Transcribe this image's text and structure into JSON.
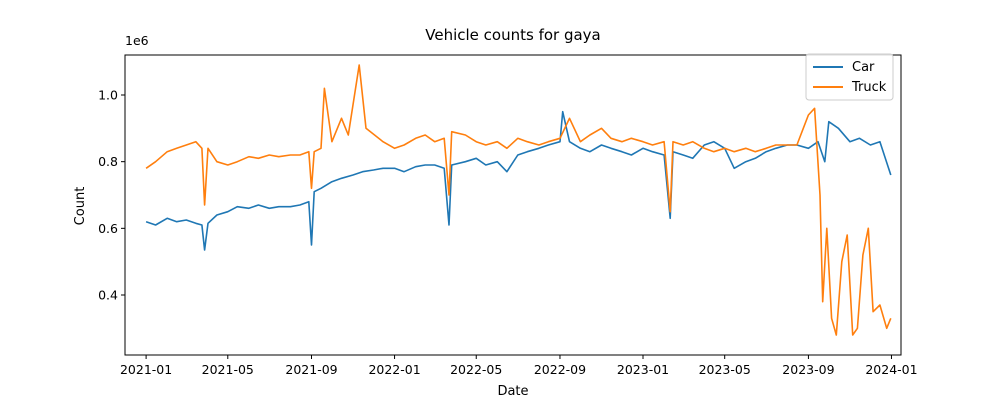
{
  "chart_data": {
    "type": "line",
    "title": "Vehicle counts for gaya",
    "xlabel": "Date",
    "ylabel": "Count",
    "y_scale_note": "1e6",
    "xlim": [
      "2020-12-01",
      "2024-01-15"
    ],
    "ylim": [
      0.22,
      1.12
    ],
    "x_ticks": [
      "2021-01",
      "2021-05",
      "2021-09",
      "2022-01",
      "2022-05",
      "2022-09",
      "2023-01",
      "2023-05",
      "2023-09",
      "2024-01"
    ],
    "y_ticks": [
      "0.4",
      "0.6",
      "0.8",
      "1.0"
    ],
    "y_tick_values": [
      0.4,
      0.6,
      0.8,
      1.0
    ],
    "grid": false,
    "legend_position": "top-right",
    "series": [
      {
        "name": "Car",
        "color": "#1f77b4",
        "points": [
          [
            "2021-01-01",
            0.62
          ],
          [
            "2021-01-15",
            0.61
          ],
          [
            "2021-02-01",
            0.63
          ],
          [
            "2021-02-15",
            0.62
          ],
          [
            "2021-03-01",
            0.625
          ],
          [
            "2021-03-15",
            0.615
          ],
          [
            "2021-03-24",
            0.61
          ],
          [
            "2021-03-28",
            0.535
          ],
          [
            "2021-04-02",
            0.615
          ],
          [
            "2021-04-15",
            0.64
          ],
          [
            "2021-05-01",
            0.65
          ],
          [
            "2021-05-15",
            0.665
          ],
          [
            "2021-06-01",
            0.66
          ],
          [
            "2021-06-15",
            0.67
          ],
          [
            "2021-07-01",
            0.66
          ],
          [
            "2021-07-15",
            0.665
          ],
          [
            "2021-08-01",
            0.665
          ],
          [
            "2021-08-15",
            0.67
          ],
          [
            "2021-08-28",
            0.68
          ],
          [
            "2021-09-01",
            0.55
          ],
          [
            "2021-09-05",
            0.71
          ],
          [
            "2021-09-15",
            0.72
          ],
          [
            "2021-10-01",
            0.74
          ],
          [
            "2021-10-15",
            0.75
          ],
          [
            "2021-11-01",
            0.76
          ],
          [
            "2021-11-15",
            0.77
          ],
          [
            "2021-12-01",
            0.775
          ],
          [
            "2021-12-15",
            0.78
          ],
          [
            "2022-01-01",
            0.78
          ],
          [
            "2022-01-15",
            0.77
          ],
          [
            "2022-02-01",
            0.785
          ],
          [
            "2022-02-15",
            0.79
          ],
          [
            "2022-03-01",
            0.79
          ],
          [
            "2022-03-15",
            0.78
          ],
          [
            "2022-03-22",
            0.61
          ],
          [
            "2022-03-26",
            0.79
          ],
          [
            "2022-04-15",
            0.8
          ],
          [
            "2022-05-01",
            0.81
          ],
          [
            "2022-05-15",
            0.79
          ],
          [
            "2022-06-01",
            0.8
          ],
          [
            "2022-06-15",
            0.77
          ],
          [
            "2022-07-01",
            0.82
          ],
          [
            "2022-07-15",
            0.83
          ],
          [
            "2022-08-01",
            0.84
          ],
          [
            "2022-08-15",
            0.85
          ],
          [
            "2022-09-01",
            0.86
          ],
          [
            "2022-09-05",
            0.95
          ],
          [
            "2022-09-15",
            0.86
          ],
          [
            "2022-10-01",
            0.84
          ],
          [
            "2022-10-15",
            0.83
          ],
          [
            "2022-11-01",
            0.85
          ],
          [
            "2022-11-15",
            0.84
          ],
          [
            "2022-12-01",
            0.83
          ],
          [
            "2022-12-15",
            0.82
          ],
          [
            "2023-01-01",
            0.84
          ],
          [
            "2023-01-15",
            0.83
          ],
          [
            "2023-02-01",
            0.82
          ],
          [
            "2023-02-10",
            0.63
          ],
          [
            "2023-02-14",
            0.83
          ],
          [
            "2023-03-01",
            0.82
          ],
          [
            "2023-03-15",
            0.81
          ],
          [
            "2023-04-01",
            0.85
          ],
          [
            "2023-04-15",
            0.86
          ],
          [
            "2023-05-01",
            0.84
          ],
          [
            "2023-05-15",
            0.78
          ],
          [
            "2023-06-01",
            0.8
          ],
          [
            "2023-06-15",
            0.81
          ],
          [
            "2023-07-01",
            0.83
          ],
          [
            "2023-07-15",
            0.84
          ],
          [
            "2023-08-01",
            0.85
          ],
          [
            "2023-08-15",
            0.85
          ],
          [
            "2023-09-01",
            0.84
          ],
          [
            "2023-09-15",
            0.86
          ],
          [
            "2023-09-25",
            0.8
          ],
          [
            "2023-10-01",
            0.92
          ],
          [
            "2023-10-15",
            0.9
          ],
          [
            "2023-11-01",
            0.86
          ],
          [
            "2023-11-15",
            0.87
          ],
          [
            "2023-12-01",
            0.85
          ],
          [
            "2023-12-15",
            0.86
          ],
          [
            "2023-12-31",
            0.76
          ]
        ]
      },
      {
        "name": "Truck",
        "color": "#ff7f0e",
        "points": [
          [
            "2021-01-01",
            0.78
          ],
          [
            "2021-01-15",
            0.8
          ],
          [
            "2021-02-01",
            0.83
          ],
          [
            "2021-02-15",
            0.84
          ],
          [
            "2021-03-01",
            0.85
          ],
          [
            "2021-03-15",
            0.86
          ],
          [
            "2021-03-24",
            0.84
          ],
          [
            "2021-03-28",
            0.67
          ],
          [
            "2021-04-02",
            0.84
          ],
          [
            "2021-04-15",
            0.8
          ],
          [
            "2021-05-01",
            0.79
          ],
          [
            "2021-05-15",
            0.8
          ],
          [
            "2021-06-01",
            0.815
          ],
          [
            "2021-06-15",
            0.81
          ],
          [
            "2021-07-01",
            0.82
          ],
          [
            "2021-07-15",
            0.815
          ],
          [
            "2021-08-01",
            0.82
          ],
          [
            "2021-08-15",
            0.82
          ],
          [
            "2021-08-28",
            0.83
          ],
          [
            "2021-09-01",
            0.72
          ],
          [
            "2021-09-05",
            0.83
          ],
          [
            "2021-09-15",
            0.84
          ],
          [
            "2021-09-20",
            1.02
          ],
          [
            "2021-10-01",
            0.86
          ],
          [
            "2021-10-15",
            0.93
          ],
          [
            "2021-10-25",
            0.88
          ],
          [
            "2021-11-10",
            1.09
          ],
          [
            "2021-11-20",
            0.9
          ],
          [
            "2021-12-15",
            0.86
          ],
          [
            "2022-01-01",
            0.84
          ],
          [
            "2022-01-15",
            0.85
          ],
          [
            "2022-02-01",
            0.87
          ],
          [
            "2022-02-15",
            0.88
          ],
          [
            "2022-03-01",
            0.86
          ],
          [
            "2022-03-15",
            0.87
          ],
          [
            "2022-03-22",
            0.7
          ],
          [
            "2022-03-26",
            0.89
          ],
          [
            "2022-04-15",
            0.88
          ],
          [
            "2022-05-01",
            0.86
          ],
          [
            "2022-05-15",
            0.85
          ],
          [
            "2022-06-01",
            0.86
          ],
          [
            "2022-06-15",
            0.84
          ],
          [
            "2022-07-01",
            0.87
          ],
          [
            "2022-07-15",
            0.86
          ],
          [
            "2022-08-01",
            0.85
          ],
          [
            "2022-08-15",
            0.86
          ],
          [
            "2022-09-01",
            0.87
          ],
          [
            "2022-09-15",
            0.93
          ],
          [
            "2022-10-01",
            0.86
          ],
          [
            "2022-10-15",
            0.88
          ],
          [
            "2022-11-01",
            0.9
          ],
          [
            "2022-11-15",
            0.87
          ],
          [
            "2022-12-01",
            0.86
          ],
          [
            "2022-12-15",
            0.87
          ],
          [
            "2023-01-01",
            0.86
          ],
          [
            "2023-01-15",
            0.85
          ],
          [
            "2023-02-01",
            0.86
          ],
          [
            "2023-02-10",
            0.65
          ],
          [
            "2023-02-14",
            0.86
          ],
          [
            "2023-03-01",
            0.85
          ],
          [
            "2023-03-15",
            0.86
          ],
          [
            "2023-04-01",
            0.84
          ],
          [
            "2023-04-15",
            0.83
          ],
          [
            "2023-05-01",
            0.84
          ],
          [
            "2023-05-15",
            0.83
          ],
          [
            "2023-06-01",
            0.84
          ],
          [
            "2023-06-15",
            0.83
          ],
          [
            "2023-07-01",
            0.84
          ],
          [
            "2023-07-15",
            0.85
          ],
          [
            "2023-08-01",
            0.85
          ],
          [
            "2023-08-15",
            0.85
          ],
          [
            "2023-09-01",
            0.94
          ],
          [
            "2023-09-10",
            0.96
          ],
          [
            "2023-09-18",
            0.7
          ],
          [
            "2023-09-22",
            0.38
          ],
          [
            "2023-09-28",
            0.6
          ],
          [
            "2023-10-05",
            0.33
          ],
          [
            "2023-10-12",
            0.28
          ],
          [
            "2023-10-20",
            0.5
          ],
          [
            "2023-10-28",
            0.58
          ],
          [
            "2023-11-05",
            0.28
          ],
          [
            "2023-11-12",
            0.3
          ],
          [
            "2023-11-20",
            0.52
          ],
          [
            "2023-11-28",
            0.6
          ],
          [
            "2023-12-05",
            0.35
          ],
          [
            "2023-12-15",
            0.37
          ],
          [
            "2023-12-25",
            0.3
          ],
          [
            "2023-12-31",
            0.33
          ]
        ]
      }
    ]
  }
}
